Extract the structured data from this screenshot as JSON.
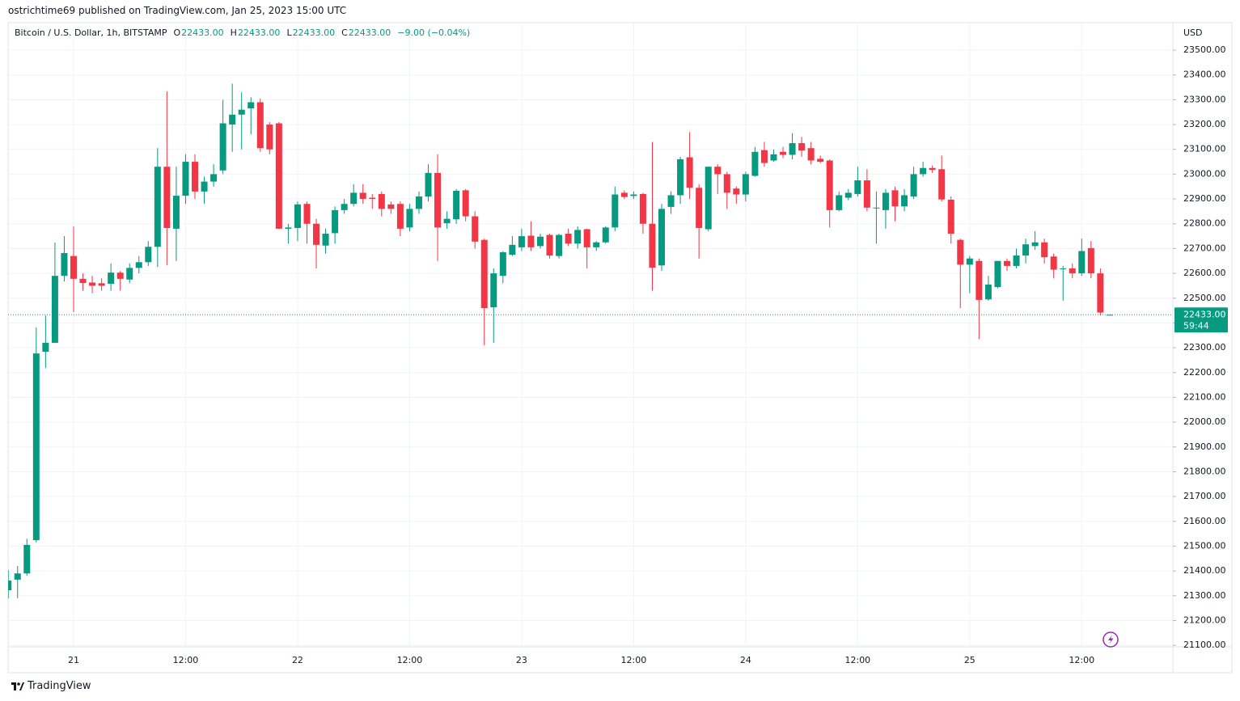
{
  "publisher_line": "ostrichtime69 published on TradingView.com, Jan 25, 2023 15:00 UTC",
  "footer_brand": "TradingView",
  "chart_data": {
    "type": "candlestick",
    "title": "Bitcoin / U.S. Dollar, 1h, BITSTAMP",
    "ohlc_legend": [
      {
        "label": "O",
        "value": "22433.00"
      },
      {
        "label": "H",
        "value": "22433.00"
      },
      {
        "label": "L",
        "value": "22433.00"
      },
      {
        "label": "C",
        "value": "22433.00"
      }
    ],
    "change": "−9.00 (−0.04%)",
    "currency": "USD",
    "last_price_label": "22433.00",
    "countdown": "59:44",
    "up_color": "#089981",
    "down_color": "#f23645",
    "grid": true,
    "ylim": [
      21094,
      23611
    ],
    "yticks": [
      {
        "value": 21100,
        "label": "21100.00"
      },
      {
        "value": 21200,
        "label": "21200.00"
      },
      {
        "value": 21300,
        "label": "21300.00"
      },
      {
        "value": 21400,
        "label": "21400.00"
      },
      {
        "value": 21500,
        "label": "21500.00"
      },
      {
        "value": 21600,
        "label": "21600.00"
      },
      {
        "value": 21700,
        "label": "21700.00"
      },
      {
        "value": 21800,
        "label": "21800.00"
      },
      {
        "value": 21900,
        "label": "21900.00"
      },
      {
        "value": 22000,
        "label": "22000.00"
      },
      {
        "value": 22100,
        "label": "22100.00"
      },
      {
        "value": 22200,
        "label": "22200.00"
      },
      {
        "value": 22300,
        "label": "22300.00"
      },
      {
        "value": 22400,
        "label": "22400.00"
      },
      {
        "value": 22500,
        "label": "22500.00"
      },
      {
        "value": 22600,
        "label": "22600.00"
      },
      {
        "value": 22700,
        "label": "22700.00"
      },
      {
        "value": 22800,
        "label": "22800.00"
      },
      {
        "value": 22900,
        "label": "22900.00"
      },
      {
        "value": 23000,
        "label": "23000.00"
      },
      {
        "value": 23100,
        "label": "23100.00"
      },
      {
        "value": 23200,
        "label": "23200.00"
      },
      {
        "value": 23300,
        "label": "23300.00"
      },
      {
        "value": 23400,
        "label": "23400.00"
      },
      {
        "value": 23500,
        "label": "23500.00"
      }
    ],
    "categories": [
      null,
      null,
      null,
      null,
      null,
      null,
      null,
      "21",
      null,
      null,
      null,
      null,
      null,
      null,
      null,
      null,
      null,
      null,
      null,
      "12:00",
      null,
      null,
      null,
      null,
      null,
      null,
      null,
      null,
      null,
      null,
      null,
      "22",
      null,
      null,
      null,
      null,
      null,
      null,
      null,
      null,
      null,
      null,
      null,
      "12:00",
      null,
      null,
      null,
      null,
      null,
      null,
      null,
      null,
      null,
      null,
      null,
      "23",
      null,
      null,
      null,
      null,
      null,
      null,
      null,
      null,
      null,
      null,
      null,
      "12:00",
      null,
      null,
      null,
      null,
      null,
      null,
      null,
      null,
      null,
      null,
      null,
      "24",
      null,
      null,
      null,
      null,
      null,
      null,
      null,
      null,
      null,
      null,
      null,
      "12:00",
      null,
      null,
      null,
      null,
      null,
      null,
      null,
      null,
      null,
      null,
      null,
      "25",
      null,
      null,
      null,
      null,
      null,
      null,
      null,
      null,
      null,
      null,
      null,
      "12:00",
      null,
      null,
      null
    ],
    "open": [
      21322,
      21365,
      21390,
      21524,
      22284,
      22320,
      22590,
      22670,
      22578,
      22563,
      22560,
      22558,
      22603,
      22575,
      22622,
      22645,
      22707,
      23030,
      22780,
      22913,
      23050,
      22930,
      22970,
      23015,
      23200,
      23240,
      23265,
      23290,
      23200,
      23205,
      22780,
      22783,
      22880,
      22800,
      22712,
      22762,
      22855,
      22880,
      22925,
      22905,
      22920,
      22878,
      22880,
      22785,
      22860,
      22910,
      23005,
      22802,
      22818,
      22935,
      22830,
      22735,
      22463,
      22590,
      22675,
      22705,
      22752,
      22710,
      22755,
      22670,
      22760,
      22720,
      22778,
      22705,
      22725,
      22785,
      22925,
      22912,
      22920,
      22800,
      22632,
      22868,
      22915,
      23068,
      22945,
      22778,
      23030,
      23000,
      22942,
      22918,
      22993,
      23097,
      23055,
      23090,
      23078,
      23125,
      23105,
      23062,
      23055,
      22855,
      22905,
      22920,
      22975,
      22863,
      22855,
      22935,
      22870,
      22910,
      23000,
      23025,
      23020,
      22897,
      22735,
      22635,
      22650,
      22495,
      22545,
      22650,
      22630,
      22672,
      22710,
      22725,
      22668,
      22618,
      22620,
      22600,
      22702,
      22600,
      22433
    ],
    "high": [
      21403,
      21420,
      21530,
      22382,
      22430,
      22724,
      22750,
      22789,
      22600,
      22590,
      22580,
      22640,
      22610,
      22640,
      22670,
      22730,
      23105,
      23334,
      23030,
      23080,
      23080,
      22990,
      23040,
      23300,
      23365,
      23330,
      23310,
      23305,
      23210,
      23210,
      22800,
      22890,
      22890,
      22820,
      22780,
      22870,
      22900,
      22960,
      22960,
      22920,
      22930,
      22890,
      22890,
      22880,
      22930,
      23040,
      23080,
      22850,
      22940,
      22940,
      22850,
      22740,
      22620,
      22690,
      22750,
      22780,
      22810,
      22760,
      22760,
      22760,
      22780,
      22790,
      22780,
      22730,
      22790,
      22950,
      22935,
      22930,
      22925,
      23130,
      22880,
      22930,
      23070,
      23170,
      22960,
      23030,
      23040,
      23010,
      22950,
      23010,
      23110,
      23130,
      23100,
      23110,
      23165,
      23150,
      23130,
      23075,
      23060,
      22930,
      22940,
      23030,
      23020,
      22930,
      22940,
      22950,
      22940,
      23030,
      23050,
      23035,
      23075,
      22910,
      22740,
      22670,
      22660,
      22590,
      22650,
      22660,
      22700,
      22740,
      22770,
      22740,
      22680,
      22630,
      22640,
      22740,
      22730,
      22620,
      22433
    ],
    "low": [
      21289,
      21290,
      21380,
      21515,
      22218,
      22320,
      22567,
      22444,
      22530,
      22520,
      22530,
      22530,
      22530,
      22560,
      22600,
      22630,
      22626,
      22633,
      22650,
      22880,
      22900,
      22880,
      22950,
      23000,
      23090,
      23100,
      23160,
      23090,
      23080,
      22780,
      22720,
      22730,
      22720,
      22620,
      22680,
      22720,
      22840,
      22870,
      22880,
      22860,
      22830,
      22840,
      22750,
      22770,
      22840,
      22890,
      22650,
      22780,
      22800,
      22810,
      22700,
      22310,
      22320,
      22560,
      22670,
      22690,
      22690,
      22700,
      22660,
      22660,
      22710,
      22700,
      22620,
      22690,
      22720,
      22770,
      22900,
      22900,
      22760,
      22530,
      22610,
      22840,
      22880,
      22900,
      22660,
      22770,
      22920,
      22860,
      22880,
      22890,
      22990,
      23030,
      23050,
      23065,
      23060,
      23070,
      23040,
      23045,
      22785,
      22850,
      22895,
      22910,
      22850,
      22720,
      22780,
      22810,
      22850,
      22900,
      22990,
      23005,
      22890,
      22720,
      22460,
      22520,
      22335,
      22490,
      22540,
      22610,
      22620,
      22640,
      22695,
      22640,
      22580,
      22490,
      22580,
      22590,
      22580,
      22430,
      22433
    ],
    "close": [
      21361,
      21390,
      21505,
      22277,
      22320,
      22590,
      22682,
      22578,
      22561,
      22550,
      22550,
      22603,
      22578,
      22622,
      22645,
      22707,
      23030,
      22783,
      22913,
      23050,
      22930,
      22970,
      23000,
      23205,
      23240,
      23260,
      23290,
      23105,
      23100,
      22780,
      22785,
      22878,
      22800,
      22715,
      22760,
      22855,
      22880,
      22925,
      22900,
      22900,
      22860,
      22860,
      22780,
      22860,
      22910,
      23005,
      22785,
      22820,
      22933,
      22830,
      22728,
      22460,
      22600,
      22685,
      22715,
      22750,
      22705,
      22748,
      22672,
      22755,
      22720,
      22775,
      22705,
      22725,
      22785,
      22918,
      22908,
      22918,
      22800,
      22623,
      22860,
      22915,
      23060,
      22945,
      22783,
      23030,
      23000,
      22925,
      22918,
      23000,
      23090,
      23045,
      23080,
      23078,
      23125,
      23095,
      23055,
      23050,
      22855,
      22915,
      22925,
      22975,
      22865,
      22865,
      22925,
      22870,
      22915,
      23000,
      23025,
      23017,
      22898,
      22760,
      22635,
      22660,
      22493,
      22555,
      22650,
      22630,
      22672,
      22717,
      22725,
      22665,
      22615,
      22620,
      22600,
      22690,
      22600,
      22442,
      22433
    ]
  }
}
